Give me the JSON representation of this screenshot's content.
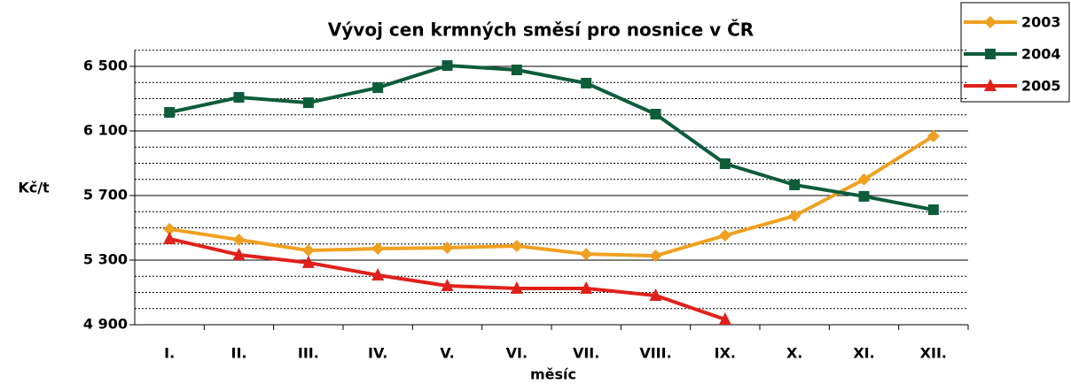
{
  "chart_data": {
    "type": "line",
    "title": "Vývoj cen krmných směsí pro nosnice v ČR",
    "y_label": "Kč/t",
    "x_label": "měsíc",
    "categories": [
      "I.",
      "II.",
      "III.",
      "IV.",
      "V.",
      "VI.",
      "VII.",
      "VIII.",
      "IX.",
      "X.",
      "XI.",
      "XII."
    ],
    "series": [
      {
        "name": "2003",
        "color": "#f0a020",
        "marker": "diamond",
        "values": [
          5492,
          5426,
          5360,
          5371,
          5377,
          5388,
          5338,
          5327,
          5453,
          5574,
          5799,
          6068
        ]
      },
      {
        "name": "2004",
        "color": "#0d5c3a",
        "marker": "square",
        "values": [
          6215,
          6308,
          6275,
          6368,
          6505,
          6478,
          6396,
          6204,
          5897,
          5766,
          5695,
          5612
        ]
      },
      {
        "name": "2005",
        "color": "#e0201a",
        "marker": "triangle",
        "values": [
          5432,
          5333,
          5284,
          5207,
          5141,
          5125,
          5125,
          5081,
          4933,
          null,
          null,
          null
        ]
      }
    ],
    "ylim": [
      4900,
      6600
    ],
    "yticks": [
      {
        "value": 4900,
        "label": "4 900"
      },
      {
        "value": 5300,
        "label": "5 300"
      },
      {
        "value": 5700,
        "label": "5 700"
      },
      {
        "value": 6100,
        "label": "6 100"
      },
      {
        "value": 6500,
        "label": "6 500"
      }
    ],
    "minor_yticks": [
      5000,
      5100,
      5200,
      5400,
      5500,
      5600,
      5800,
      5900,
      6000,
      6200,
      6300,
      6400,
      6600
    ],
    "grid": true,
    "legend": "top-right"
  }
}
